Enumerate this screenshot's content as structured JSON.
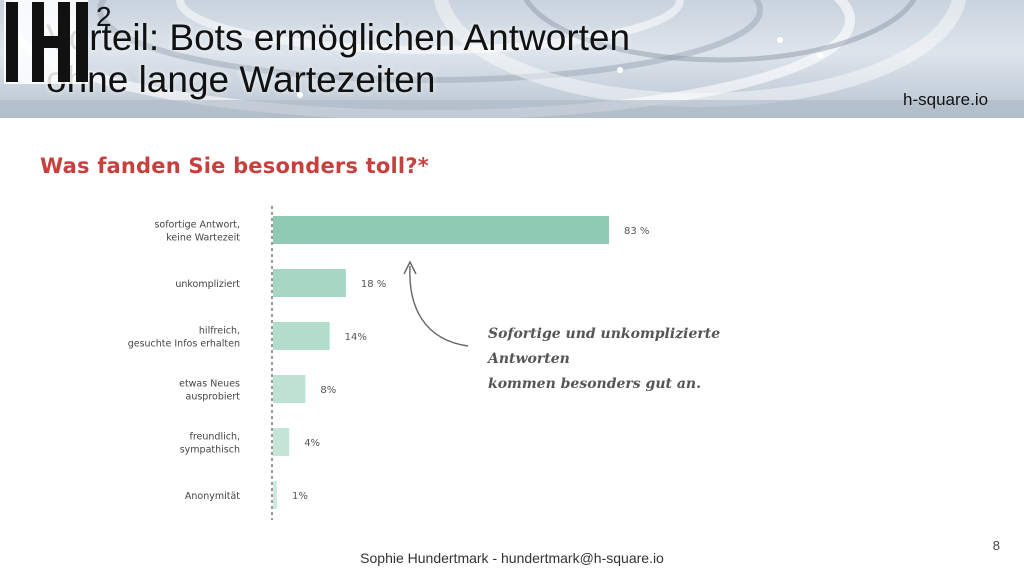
{
  "slide": {
    "title_line1": "Vorteil: Bots ermöglichen Antworten",
    "title_line2": "ohne lange Wartezeiten",
    "logo_superscript": "2",
    "logo_url": "h-square.io",
    "footer": "Sophie Hundertmark - hundertmark@h-square.io",
    "page_number": "8"
  },
  "chart_data": {
    "type": "bar",
    "orientation": "horizontal",
    "title": "Was fanden Sie besonders toll?*",
    "categories": [
      [
        "sofortige Antwort,",
        "keine Wartezeit"
      ],
      [
        "unkompliziert"
      ],
      [
        "hilfreich,",
        "gesuchte Infos erhalten"
      ],
      [
        "etwas Neues",
        "ausprobiert"
      ],
      [
        "freundlich,",
        "sympathisch"
      ],
      [
        "Anonymität"
      ]
    ],
    "values": [
      83,
      18,
      14,
      8,
      4,
      1
    ],
    "value_labels": [
      "83 %",
      "18 %",
      "14%",
      "8%",
      "4%",
      "1%"
    ],
    "xlim": [
      0,
      100
    ],
    "grid": false,
    "colors": [
      "#8ecab4",
      "#a7d7c4",
      "#b2dccb",
      "#bde1d3",
      "#c6e5d9",
      "#cfe9df"
    ],
    "annotation": {
      "line1": "Sofortige und unkomplizierte Antworten",
      "line2": "kommen besonders gut an."
    }
  }
}
